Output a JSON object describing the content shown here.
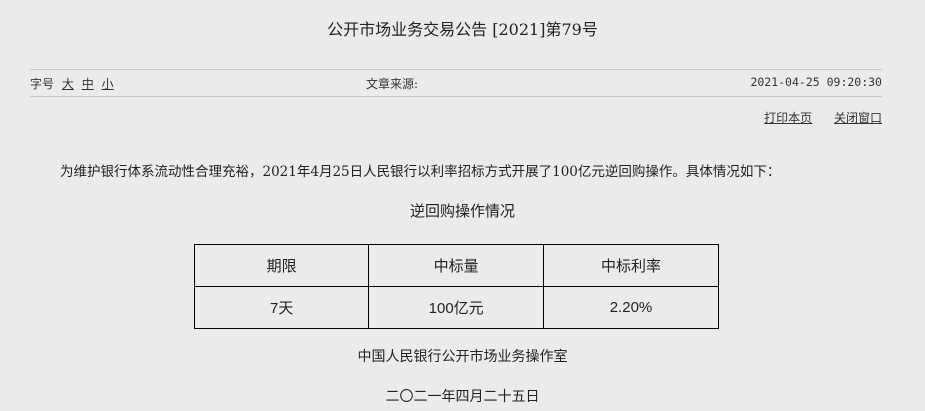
{
  "title": "公开市场业务交易公告 [2021]第79号",
  "meta": {
    "font_size_label": "字号",
    "font_sizes": [
      "大",
      "中",
      "小"
    ],
    "source_label": "文章来源:",
    "datetime": "2021-04-25 09:20:30"
  },
  "actions": {
    "print": "打印本页",
    "close": "关闭窗口"
  },
  "body": {
    "paragraph": "为维护银行体系流动性合理充裕，2021年4月25日人民银行以利率招标方式开展了100亿元逆回购操作。具体情况如下：",
    "table_title": "逆回购操作情况"
  },
  "table": {
    "headers": [
      "期限",
      "中标量",
      "中标利率"
    ],
    "rows": [
      [
        "7天",
        "100亿元",
        "2.20%"
      ]
    ]
  },
  "footer": {
    "org": "中国人民银行公开市场业务操作室",
    "date": "二〇二一年四月二十五日"
  }
}
